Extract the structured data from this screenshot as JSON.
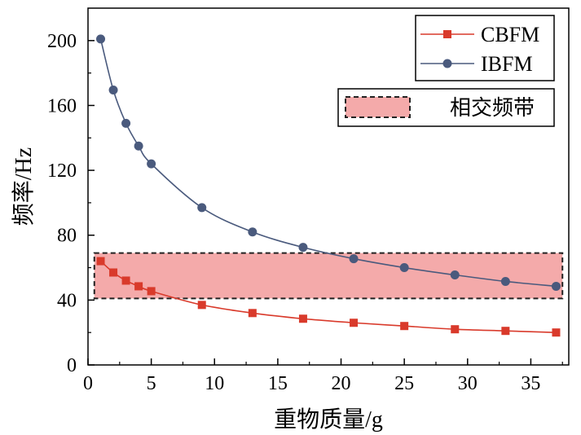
{
  "chart_data": {
    "type": "line",
    "xlabel": "重物质量/g",
    "ylabel": "频率/Hz",
    "xlim": [
      0,
      38
    ],
    "ylim": [
      0,
      220
    ],
    "xticks": [
      0,
      5,
      10,
      15,
      20,
      25,
      30,
      35
    ],
    "yticks": [
      0,
      40,
      80,
      120,
      160,
      200
    ],
    "grid": false,
    "legend_position": "top-right",
    "series": [
      {
        "name": "CBFM",
        "color": "#d93a2b",
        "marker": "square",
        "x": [
          1,
          2,
          3,
          4,
          5,
          9,
          13,
          17,
          21,
          25,
          29,
          33,
          37
        ],
        "y": [
          64,
          57,
          52,
          48.5,
          45.5,
          37,
          32,
          28.5,
          26,
          24,
          22,
          21,
          20
        ]
      },
      {
        "name": "IBFM",
        "color": "#4a5a7d",
        "marker": "circle",
        "x": [
          1,
          2,
          3,
          4,
          5,
          9,
          13,
          17,
          21,
          25,
          29,
          33,
          37
        ],
        "y": [
          201,
          169.5,
          149,
          135,
          124,
          97,
          82,
          72.5,
          65.5,
          60,
          55.5,
          51.5,
          48.5
        ]
      }
    ],
    "band": {
      "name": "相交频带",
      "x_range": [
        0.5,
        37.5
      ],
      "y_range": [
        41,
        69
      ],
      "fill": "#f4aaaa",
      "stroke": "#222222"
    }
  }
}
